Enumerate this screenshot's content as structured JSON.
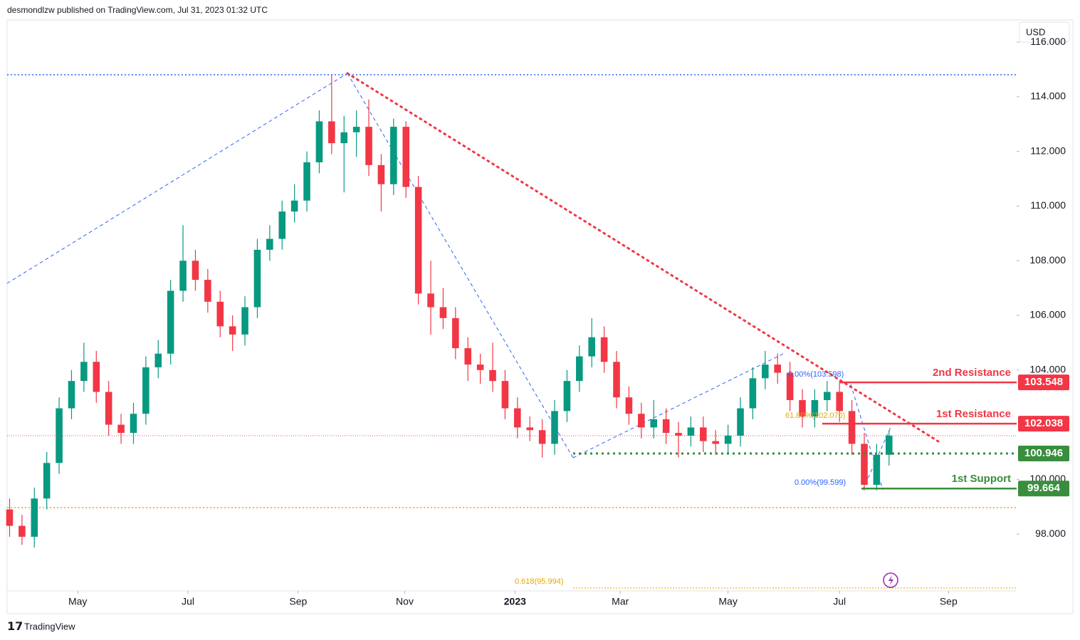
{
  "header": {
    "publisher": "desmondlzw published on TradingView.com, Jul 31, 2023 01:32 UTC",
    "currency": "USD",
    "brand": "TradingView"
  },
  "chart_data": {
    "type": "candlestick",
    "up_color": "#089981",
    "down_color": "#f23645",
    "categories": [
      null,
      null,
      null,
      null,
      null,
      null,
      null,
      null,
      null,
      null,
      null,
      null,
      null,
      null,
      null,
      null,
      null,
      null,
      null,
      null,
      null,
      null,
      null,
      null,
      null,
      null,
      null,
      null,
      null,
      null,
      null,
      null,
      null,
      null,
      null,
      null,
      null,
      null,
      null,
      null,
      null,
      null,
      null,
      null,
      null,
      null,
      null,
      null,
      null,
      null,
      null,
      null,
      null,
      null,
      null,
      null,
      null,
      null,
      null,
      null,
      null,
      null,
      null,
      null,
      null,
      null,
      null,
      null,
      null,
      null,
      null,
      null
    ],
    "ohlc": [
      [
        98.9,
        99.3,
        97.9,
        98.3
      ],
      [
        98.3,
        98.7,
        97.6,
        97.9
      ],
      [
        97.9,
        99.7,
        97.5,
        99.3
      ],
      [
        99.3,
        101.0,
        98.9,
        100.6
      ],
      [
        100.6,
        103.0,
        100.2,
        102.6
      ],
      [
        102.6,
        104.0,
        102.2,
        103.6
      ],
      [
        103.6,
        105.0,
        103.2,
        104.3
      ],
      [
        104.3,
        104.7,
        102.8,
        103.2
      ],
      [
        103.2,
        103.6,
        101.6,
        102.0
      ],
      [
        102.0,
        102.4,
        101.3,
        101.7
      ],
      [
        101.7,
        102.8,
        101.3,
        102.4
      ],
      [
        102.4,
        104.5,
        102.0,
        104.1
      ],
      [
        104.1,
        105.1,
        103.7,
        104.6
      ],
      [
        104.6,
        107.3,
        104.2,
        106.9
      ],
      [
        106.9,
        109.3,
        106.5,
        108.0
      ],
      [
        108.0,
        108.4,
        106.9,
        107.3
      ],
      [
        107.3,
        107.7,
        106.1,
        106.5
      ],
      [
        106.5,
        106.9,
        105.2,
        105.6
      ],
      [
        105.6,
        106.0,
        104.7,
        105.3
      ],
      [
        105.3,
        106.7,
        104.9,
        106.3
      ],
      [
        106.3,
        108.8,
        105.9,
        108.4
      ],
      [
        108.4,
        109.3,
        108.0,
        108.8
      ],
      [
        108.8,
        110.2,
        108.4,
        109.8
      ],
      [
        109.8,
        110.8,
        109.4,
        110.2
      ],
      [
        110.2,
        112.0,
        109.8,
        111.6
      ],
      [
        111.6,
        113.5,
        111.2,
        113.1
      ],
      [
        113.1,
        114.8,
        111.9,
        112.3
      ],
      [
        112.3,
        113.3,
        110.5,
        112.7
      ],
      [
        112.7,
        113.5,
        111.8,
        112.9
      ],
      [
        112.9,
        113.9,
        111.1,
        111.5
      ],
      [
        111.5,
        111.9,
        109.8,
        110.8
      ],
      [
        110.8,
        113.2,
        110.4,
        112.9
      ],
      [
        112.9,
        113.1,
        110.3,
        110.7
      ],
      [
        110.7,
        111.1,
        106.4,
        106.8
      ],
      [
        106.8,
        108.0,
        105.3,
        106.3
      ],
      [
        106.3,
        107.0,
        105.5,
        105.9
      ],
      [
        105.9,
        106.3,
        104.4,
        104.8
      ],
      [
        104.8,
        105.2,
        103.6,
        104.2
      ],
      [
        104.2,
        104.6,
        103.5,
        104.0
      ],
      [
        104.0,
        105.0,
        103.2,
        103.6
      ],
      [
        103.6,
        104.0,
        102.2,
        102.6
      ],
      [
        102.6,
        103.0,
        101.5,
        101.9
      ],
      [
        101.9,
        102.3,
        101.4,
        101.8
      ],
      [
        101.8,
        102.2,
        100.8,
        101.3
      ],
      [
        101.3,
        102.9,
        100.9,
        102.5
      ],
      [
        102.5,
        104.0,
        102.1,
        103.6
      ],
      [
        103.6,
        104.9,
        103.2,
        104.5
      ],
      [
        104.5,
        105.9,
        104.1,
        105.2
      ],
      [
        105.2,
        105.6,
        103.9,
        104.3
      ],
      [
        104.3,
        104.7,
        102.6,
        103.0
      ],
      [
        103.0,
        103.4,
        102.0,
        102.4
      ],
      [
        102.4,
        102.8,
        101.5,
        101.9
      ],
      [
        101.9,
        102.9,
        101.5,
        102.2
      ],
      [
        102.2,
        102.6,
        101.3,
        101.7
      ],
      [
        101.7,
        102.1,
        100.8,
        101.6
      ],
      [
        101.6,
        102.3,
        101.2,
        101.9
      ],
      [
        101.9,
        102.3,
        101.0,
        101.4
      ],
      [
        101.4,
        101.8,
        100.9,
        101.3
      ],
      [
        101.3,
        102.0,
        100.9,
        101.6
      ],
      [
        101.6,
        103.0,
        101.2,
        102.6
      ],
      [
        102.6,
        104.1,
        102.2,
        103.7
      ],
      [
        103.7,
        104.7,
        103.3,
        104.2
      ],
      [
        104.2,
        104.6,
        103.5,
        103.9
      ],
      [
        103.9,
        104.3,
        102.5,
        102.9
      ],
      [
        102.9,
        103.3,
        101.9,
        102.3
      ],
      [
        102.3,
        103.3,
        101.9,
        102.9
      ],
      [
        102.9,
        103.6,
        102.5,
        103.2
      ],
      [
        103.2,
        103.6,
        102.1,
        102.5
      ],
      [
        102.5,
        102.9,
        100.9,
        101.3
      ],
      [
        101.3,
        101.7,
        99.6,
        99.8
      ],
      [
        99.8,
        101.3,
        99.6,
        100.9
      ],
      [
        100.9,
        101.8,
        100.5,
        101.6
      ]
    ],
    "xlim": [
      -0.2,
      81.3
    ],
    "xticks": [
      {
        "value": 5.5,
        "label": "May"
      },
      {
        "value": 14.4,
        "label": "Jul"
      },
      {
        "value": 23.3,
        "label": "Sep"
      },
      {
        "value": 31.9,
        "label": "Nov"
      },
      {
        "value": 40.8,
        "label": "2023"
      },
      {
        "value": 49.3,
        "label": "Mar"
      },
      {
        "value": 58.0,
        "label": "May"
      },
      {
        "value": 67.0,
        "label": "Jul"
      },
      {
        "value": 75.8,
        "label": "Sep"
      }
    ],
    "ylim": [
      95.92,
      116.81
    ],
    "yticks": [
      {
        "value": 116,
        "label": "116.000"
      },
      {
        "value": 114,
        "label": "114.000"
      },
      {
        "value": 112,
        "label": "112.000"
      },
      {
        "value": 110,
        "label": "110.000"
      },
      {
        "value": 108,
        "label": "108.000"
      },
      {
        "value": 106,
        "label": "106.000"
      },
      {
        "value": 104,
        "label": "104.000"
      },
      {
        "value": 100,
        "label": "100.000"
      },
      {
        "value": 98,
        "label": "98.000"
      }
    ],
    "levels": [
      {
        "name": "2nd Resistance",
        "value": 103.548,
        "color": "#f23645",
        "style": "solid"
      },
      {
        "name": "1st Resistance",
        "value": 102.038,
        "color": "#f23645",
        "style": "solid"
      },
      {
        "value": 100.946,
        "color": "#388e3c",
        "style": "dotted"
      },
      {
        "name": "1st Support",
        "value": 99.664,
        "color": "#388e3c",
        "style": "solid"
      }
    ],
    "annotations": [
      "0.00%(103.598)",
      "61.80%(102.070)",
      "0.00%(99.599)",
      "0.618(95.994)"
    ]
  }
}
